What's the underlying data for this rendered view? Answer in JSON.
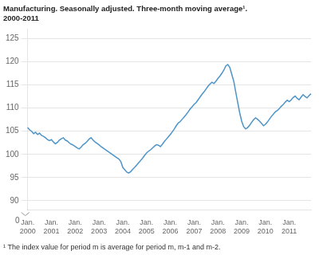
{
  "chart_data": {
    "type": "line",
    "title": "Manufacturing. Seasonally adjusted. Three-month moving average¹.",
    "subtitle": "2000-2011",
    "footnote": "¹ The index value for period m is average for period m, m-1 and m-2.",
    "annotations": [
      "0"
    ],
    "categories": [
      "Jan.\n2000",
      null,
      null,
      null,
      null,
      null,
      null,
      null,
      null,
      null,
      null,
      null,
      "Jan.\n2001",
      null,
      null,
      null,
      null,
      null,
      null,
      null,
      null,
      null,
      null,
      null,
      "Jan.\n2002",
      null,
      null,
      null,
      null,
      null,
      null,
      null,
      null,
      null,
      null,
      null,
      "Jan.\n2003",
      null,
      null,
      null,
      null,
      null,
      null,
      null,
      null,
      null,
      null,
      null,
      "Jan.\n2004",
      null,
      null,
      null,
      null,
      null,
      null,
      null,
      null,
      null,
      null,
      null,
      "Jan.\n2005",
      null,
      null,
      null,
      null,
      null,
      null,
      null,
      null,
      null,
      null,
      null,
      "Jan.\n2006",
      null,
      null,
      null,
      null,
      null,
      null,
      null,
      null,
      null,
      null,
      null,
      "Jan.\n2007",
      null,
      null,
      null,
      null,
      null,
      null,
      null,
      null,
      null,
      null,
      null,
      "Jan.\n2008",
      null,
      null,
      null,
      null,
      null,
      null,
      null,
      null,
      null,
      null,
      null,
      "Jan.\n2009",
      null,
      null,
      null,
      null,
      null,
      null,
      null,
      null,
      null,
      null,
      null,
      "Jan.\n2010",
      null,
      null,
      null,
      null,
      null,
      null,
      null,
      null,
      null,
      null,
      null,
      "Jan.\n2011",
      null,
      null,
      null,
      null,
      null,
      null,
      null,
      null,
      null,
      null,
      null
    ],
    "series": [
      {
        "name": "Manufacturing",
        "color": "#4d94c9",
        "values": [
          105.8,
          105.3,
          105.0,
          104.5,
          104.8,
          104.3,
          104.6,
          104.1,
          103.9,
          103.6,
          103.2,
          103.0,
          103.2,
          102.7,
          102.3,
          102.6,
          103.1,
          103.4,
          103.6,
          103.1,
          102.9,
          102.5,
          102.2,
          102.0,
          101.7,
          101.4,
          101.2,
          101.6,
          102.1,
          102.4,
          102.8,
          103.3,
          103.6,
          103.1,
          102.7,
          102.4,
          102.1,
          101.7,
          101.4,
          101.1,
          100.8,
          100.5,
          100.2,
          99.9,
          99.6,
          99.3,
          99.0,
          98.5,
          97.2,
          96.7,
          96.2,
          96.0,
          96.3,
          96.8,
          97.2,
          97.7,
          98.2,
          98.7,
          99.2,
          99.8,
          100.3,
          100.7,
          101.0,
          101.4,
          101.8,
          102.1,
          102.0,
          101.7,
          102.2,
          102.8,
          103.3,
          103.8,
          104.3,
          104.9,
          105.5,
          106.2,
          106.8,
          107.1,
          107.6,
          108.1,
          108.6,
          109.2,
          109.8,
          110.3,
          110.8,
          111.2,
          111.8,
          112.4,
          113.0,
          113.5,
          114.1,
          114.7,
          115.2,
          115.6,
          115.3,
          115.8,
          116.4,
          116.9,
          117.5,
          118.2,
          119.1,
          119.4,
          118.8,
          117.3,
          115.8,
          113.5,
          111.2,
          109.0,
          107.2,
          106.0,
          105.5,
          105.8,
          106.3,
          106.9,
          107.5,
          107.9,
          107.6,
          107.2,
          106.7,
          106.2,
          106.5,
          107.0,
          107.6,
          108.2,
          108.7,
          109.2,
          109.5,
          109.9,
          110.4,
          110.8,
          111.3,
          111.7,
          111.4,
          111.8,
          112.3,
          112.6,
          112.1,
          111.8,
          112.4,
          112.9,
          112.5,
          112.2,
          112.7,
          113.1
        ]
      }
    ],
    "ylim": [
      88,
      127
    ],
    "yticks": [
      90,
      95,
      100,
      105,
      110,
      115,
      120,
      125
    ],
    "grid": true
  }
}
